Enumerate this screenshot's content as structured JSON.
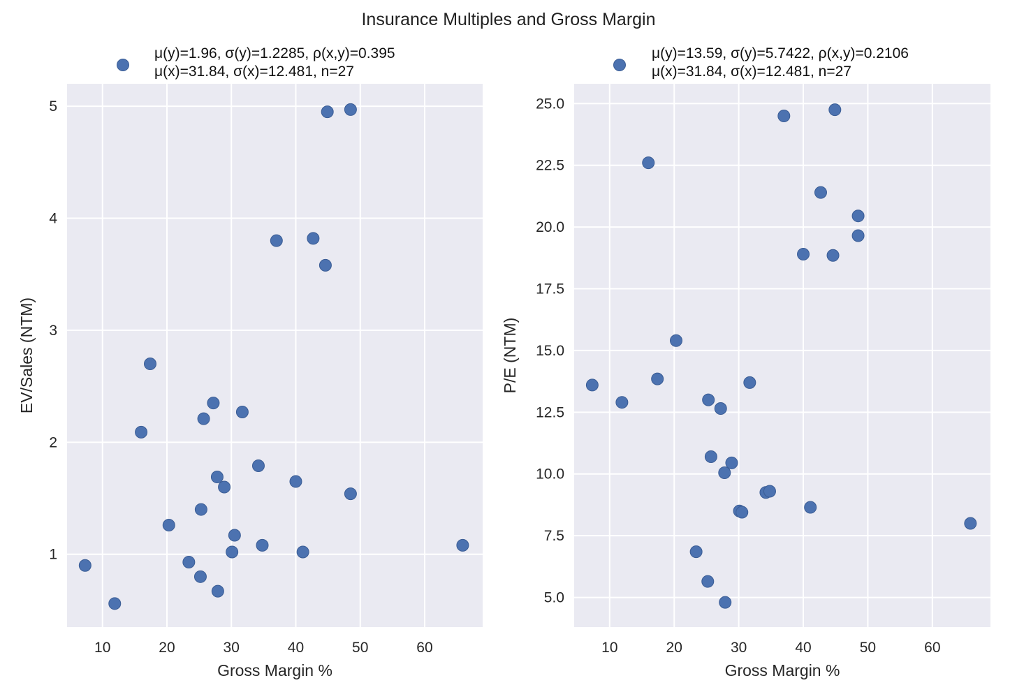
{
  "figure": {
    "title": "Insurance Multiples and Gross Margin"
  },
  "colors": {
    "background": "#eaeaf2",
    "grid": "#ffffff",
    "point": "#4c72b0",
    "point_edge": "#3b5d95",
    "text": "#262626"
  },
  "chart_data": [
    {
      "type": "scatter",
      "title": "",
      "xlabel": "Gross Margin %",
      "ylabel": "EV/Sales (NTM)",
      "xlim": [
        4.5,
        69
      ],
      "ylim": [
        0.35,
        5.2
      ],
      "xticks": [
        10,
        20,
        30,
        40,
        50,
        60
      ],
      "yticks": [
        1,
        2,
        3,
        4,
        5
      ],
      "ytick_labels": [
        "1",
        "2",
        "3",
        "4",
        "5"
      ],
      "grid": true,
      "legend_position": "top-left",
      "legend": {
        "line1": "μ(y)=1.96, σ(y)=1.2285, ρ(x,y)=0.395",
        "line2": "μ(x)=31.84, σ(x)=12.481, n=27"
      },
      "points": [
        {
          "x": 7.3,
          "y": 0.9
        },
        {
          "x": 11.9,
          "y": 0.56
        },
        {
          "x": 16.0,
          "y": 2.09
        },
        {
          "x": 17.4,
          "y": 2.7
        },
        {
          "x": 20.3,
          "y": 1.26
        },
        {
          "x": 23.4,
          "y": 0.93
        },
        {
          "x": 25.2,
          "y": 0.8
        },
        {
          "x": 25.3,
          "y": 1.4
        },
        {
          "x": 25.7,
          "y": 2.21
        },
        {
          "x": 27.2,
          "y": 2.35
        },
        {
          "x": 27.8,
          "y": 1.69
        },
        {
          "x": 27.9,
          "y": 0.67
        },
        {
          "x": 28.9,
          "y": 1.6
        },
        {
          "x": 30.1,
          "y": 1.02
        },
        {
          "x": 30.5,
          "y": 1.17
        },
        {
          "x": 31.7,
          "y": 2.27
        },
        {
          "x": 34.2,
          "y": 1.79
        },
        {
          "x": 34.8,
          "y": 1.08
        },
        {
          "x": 37.0,
          "y": 3.8
        },
        {
          "x": 40.0,
          "y": 1.65
        },
        {
          "x": 41.1,
          "y": 1.02
        },
        {
          "x": 42.7,
          "y": 3.82
        },
        {
          "x": 44.6,
          "y": 3.58
        },
        {
          "x": 44.9,
          "y": 4.95
        },
        {
          "x": 48.5,
          "y": 4.97
        },
        {
          "x": 48.5,
          "y": 1.54
        },
        {
          "x": 65.9,
          "y": 1.08
        }
      ]
    },
    {
      "type": "scatter",
      "title": "",
      "xlabel": "Gross Margin %",
      "ylabel": "P/E (NTM)",
      "xlim": [
        4.5,
        69
      ],
      "ylim": [
        3.8,
        25.8
      ],
      "xticks": [
        10,
        20,
        30,
        40,
        50,
        60
      ],
      "yticks": [
        5,
        7.5,
        10,
        12.5,
        15,
        17.5,
        20,
        22.5,
        25
      ],
      "ytick_labels": [
        "5.0",
        "7.5",
        "10.0",
        "12.5",
        "15.0",
        "17.5",
        "20.0",
        "22.5",
        "25.0"
      ],
      "grid": true,
      "legend_position": "top-left",
      "legend": {
        "line1": "μ(y)=13.59, σ(y)=5.7422, ρ(x,y)=0.2106",
        "line2": "μ(x)=31.84, σ(x)=12.481, n=27"
      },
      "points": [
        {
          "x": 7.3,
          "y": 13.6
        },
        {
          "x": 11.9,
          "y": 12.9
        },
        {
          "x": 16.0,
          "y": 22.6
        },
        {
          "x": 17.4,
          "y": 13.85
        },
        {
          "x": 20.3,
          "y": 15.4
        },
        {
          "x": 23.4,
          "y": 6.85
        },
        {
          "x": 25.2,
          "y": 5.65
        },
        {
          "x": 25.3,
          "y": 13.0
        },
        {
          "x": 25.7,
          "y": 10.7
        },
        {
          "x": 27.2,
          "y": 12.65
        },
        {
          "x": 27.8,
          "y": 10.05
        },
        {
          "x": 27.9,
          "y": 4.8
        },
        {
          "x": 28.9,
          "y": 10.45
        },
        {
          "x": 30.1,
          "y": 8.5
        },
        {
          "x": 30.5,
          "y": 8.45
        },
        {
          "x": 31.7,
          "y": 13.7
        },
        {
          "x": 34.2,
          "y": 9.25
        },
        {
          "x": 34.8,
          "y": 9.3
        },
        {
          "x": 37.0,
          "y": 24.5
        },
        {
          "x": 40.0,
          "y": 18.9
        },
        {
          "x": 41.1,
          "y": 8.65
        },
        {
          "x": 42.7,
          "y": 21.4
        },
        {
          "x": 44.6,
          "y": 18.85
        },
        {
          "x": 44.9,
          "y": 24.75
        },
        {
          "x": 48.5,
          "y": 20.45
        },
        {
          "x": 48.5,
          "y": 19.65
        },
        {
          "x": 65.9,
          "y": 8.0
        }
      ]
    }
  ]
}
